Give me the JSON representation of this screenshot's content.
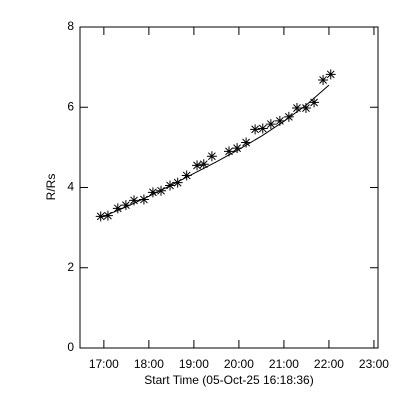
{
  "chart_data": {
    "type": "scatter",
    "xlabel": "Start Time (05-Oct-25 16:18:36)",
    "ylabel": "R/Rs",
    "xlim": [
      16.47,
      23.09
    ],
    "xticks": [
      {
        "value": 17,
        "label": "17:00"
      },
      {
        "value": 18,
        "label": "18:00"
      },
      {
        "value": 19,
        "label": "19:00"
      },
      {
        "value": 20,
        "label": "20:00"
      },
      {
        "value": 21,
        "label": "21:00"
      },
      {
        "value": 22,
        "label": "22:00"
      },
      {
        "value": 23,
        "label": "23:00"
      }
    ],
    "ylim": [
      0,
      8
    ],
    "yticks": [
      0,
      2,
      4,
      6,
      8
    ],
    "series": [
      {
        "marker": "asterisk",
        "color": "#000000",
        "x": [
          16.93,
          17.09,
          17.31,
          17.49,
          17.67,
          17.89,
          18.09,
          18.27,
          18.47,
          18.64,
          18.84,
          19.07,
          19.22,
          19.4,
          19.78,
          19.96,
          20.16,
          20.36,
          20.53,
          20.71,
          20.91,
          21.11,
          21.29,
          21.49,
          21.67,
          21.87,
          22.04
        ],
        "values": [
          3.28,
          3.3,
          3.48,
          3.56,
          3.68,
          3.7,
          3.88,
          3.92,
          4.05,
          4.12,
          4.3,
          4.55,
          4.58,
          4.78,
          4.9,
          4.98,
          5.12,
          5.45,
          5.47,
          5.58,
          5.66,
          5.76,
          5.98,
          5.98,
          6.12,
          6.68,
          6.82
        ]
      },
      {
        "marker": "line",
        "color": "#000000",
        "x": [
          16.93,
          17.5,
          18,
          18.5,
          19,
          19.5,
          20,
          20.5,
          21,
          21.5,
          22
        ],
        "values": [
          3.25,
          3.52,
          3.78,
          4.06,
          4.35,
          4.64,
          4.95,
          5.28,
          5.65,
          6.06,
          6.55
        ]
      }
    ]
  }
}
